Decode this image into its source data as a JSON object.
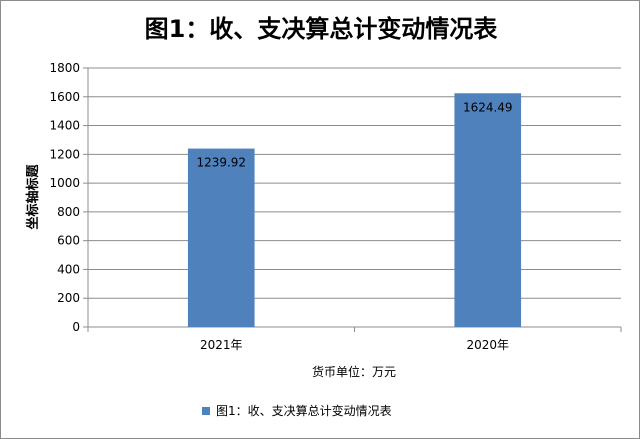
{
  "chart_data": {
    "type": "bar",
    "title": "图1：收、支决算总计变动情况表",
    "ylabel": "坐标轴标题",
    "xlabel": "货币单位：万元",
    "categories": [
      "2021年",
      "2020年"
    ],
    "series": [
      {
        "name": "图1：收、支决算总计变动情况表",
        "values": [
          1239.92,
          1624.49
        ],
        "color": "#4f81bd"
      }
    ],
    "data_labels": [
      "1239.92",
      "1624.49"
    ],
    "ylim": [
      0,
      1800
    ],
    "yticks": [
      0,
      200,
      400,
      600,
      800,
      1000,
      1200,
      1400,
      1600,
      1800
    ],
    "grid": true,
    "legend_position": "bottom"
  }
}
